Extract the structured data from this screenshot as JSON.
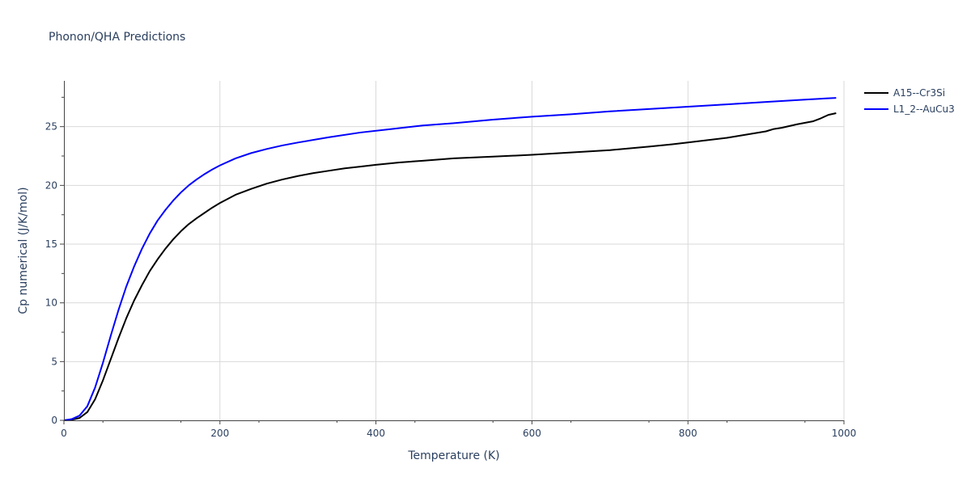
{
  "chart_data": {
    "type": "line",
    "title": "Phonon/QHA Predictions",
    "xlabel": "Temperature (K)",
    "ylabel": "Cp numerical (J/K/mol)",
    "xlim": [
      0,
      1000
    ],
    "ylim": [
      0,
      28.9
    ],
    "x_ticks": [
      0,
      200,
      400,
      600,
      800,
      1000
    ],
    "y_ticks": [
      0,
      5,
      10,
      15,
      20,
      25
    ],
    "grid": true,
    "legend_position": "top-right",
    "series": [
      {
        "name": "A15--Cr3Si",
        "color": "#000000",
        "x": [
          0,
          10,
          20,
          30,
          40,
          50,
          60,
          70,
          80,
          90,
          100,
          110,
          120,
          130,
          140,
          150,
          160,
          170,
          180,
          190,
          200,
          220,
          240,
          260,
          280,
          300,
          320,
          340,
          360,
          380,
          400,
          430,
          460,
          500,
          550,
          600,
          650,
          700,
          750,
          780,
          800,
          850,
          900,
          910,
          920,
          940,
          960,
          970,
          980,
          990
        ],
        "y": [
          0,
          0.05,
          0.2,
          0.7,
          1.8,
          3.4,
          5.2,
          7.0,
          8.7,
          10.2,
          11.5,
          12.7,
          13.7,
          14.6,
          15.4,
          16.1,
          16.7,
          17.2,
          17.65,
          18.1,
          18.5,
          19.2,
          19.7,
          20.15,
          20.5,
          20.8,
          21.05,
          21.25,
          21.45,
          21.6,
          21.75,
          21.95,
          22.1,
          22.3,
          22.45,
          22.6,
          22.8,
          23.0,
          23.3,
          23.5,
          23.65,
          24.05,
          24.6,
          24.8,
          24.9,
          25.2,
          25.45,
          25.7,
          26.0,
          26.15
        ]
      },
      {
        "name": "L1_2--AuCu3",
        "color": "#0000ff",
        "x": [
          0,
          10,
          20,
          30,
          40,
          50,
          60,
          70,
          80,
          90,
          100,
          110,
          120,
          130,
          140,
          150,
          160,
          170,
          180,
          190,
          200,
          220,
          240,
          260,
          280,
          300,
          340,
          380,
          420,
          460,
          500,
          550,
          600,
          650,
          700,
          750,
          800,
          850,
          900,
          950,
          990
        ],
        "y": [
          0,
          0.1,
          0.4,
          1.2,
          2.8,
          4.9,
          7.2,
          9.4,
          11.4,
          13.1,
          14.6,
          15.9,
          17.0,
          17.9,
          18.7,
          19.4,
          20.0,
          20.5,
          20.95,
          21.35,
          21.7,
          22.3,
          22.75,
          23.1,
          23.4,
          23.65,
          24.1,
          24.5,
          24.8,
          25.1,
          25.3,
          25.6,
          25.85,
          26.05,
          26.3,
          26.5,
          26.7,
          26.9,
          27.1,
          27.3,
          27.45
        ]
      }
    ]
  }
}
